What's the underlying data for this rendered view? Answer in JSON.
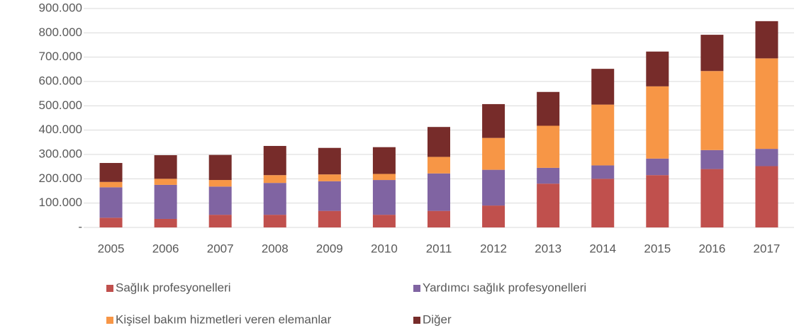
{
  "chart_data": {
    "type": "stacked_bar",
    "categories": [
      "2005",
      "2006",
      "2007",
      "2008",
      "2009",
      "2010",
      "2011",
      "2012",
      "2013",
      "2014",
      "2015",
      "2016",
      "2017"
    ],
    "series": [
      {
        "name": "Sağlık profesyonelleri",
        "color": "#c0504d",
        "values": [
          40000,
          35000,
          52000,
          52000,
          68000,
          52000,
          68000,
          90000,
          180000,
          200000,
          215000,
          240000,
          252000
        ]
      },
      {
        "name": "Yardımcı sağlık profesyonelleri",
        "color": "#8064a2",
        "values": [
          125000,
          140000,
          116000,
          131000,
          122000,
          143000,
          154000,
          147000,
          65000,
          55000,
          68000,
          78000,
          71000
        ]
      },
      {
        "name": "Kişisel bakım hizmetleri veren elemanlar",
        "color": "#f79646",
        "values": [
          22000,
          25000,
          27000,
          32000,
          28000,
          25000,
          68000,
          131000,
          173000,
          250000,
          297000,
          325000,
          372000
        ]
      },
      {
        "name": "Diğer",
        "color": "#772c2a",
        "values": [
          78000,
          97000,
          103000,
          120000,
          109000,
          110000,
          123000,
          139000,
          139000,
          147000,
          143000,
          149000,
          153000
        ]
      }
    ],
    "ylim": [
      0,
      900000
    ],
    "yticks": [
      {
        "value": 0,
        "label": "-"
      },
      {
        "value": 100000,
        "label": "100.000"
      },
      {
        "value": 200000,
        "label": "200.000"
      },
      {
        "value": 300000,
        "label": "300.000"
      },
      {
        "value": 400000,
        "label": "400.000"
      },
      {
        "value": 500000,
        "label": "500.000"
      },
      {
        "value": 600000,
        "label": "600.000"
      },
      {
        "value": 700000,
        "label": "700.000"
      },
      {
        "value": 800000,
        "label": "800.000"
      },
      {
        "value": 900000,
        "label": "900.000"
      }
    ],
    "grid": true,
    "legend": "bottom"
  }
}
